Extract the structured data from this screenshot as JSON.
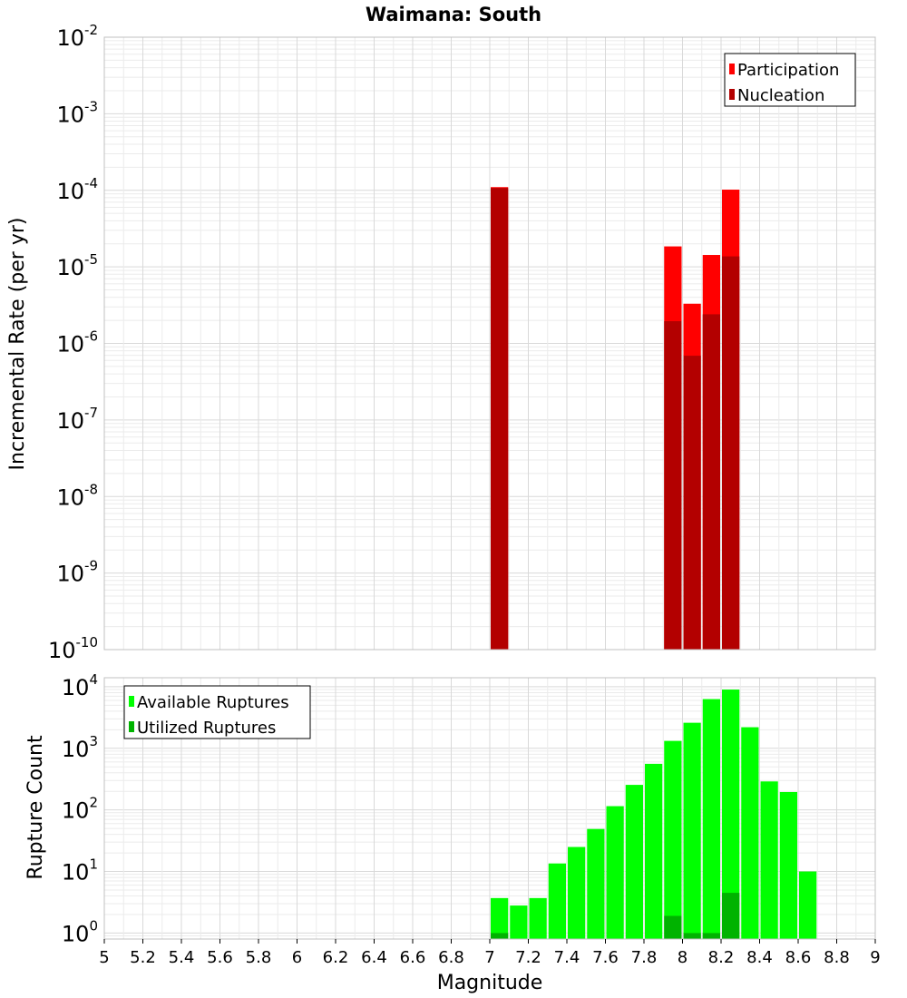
{
  "title": "Waimana: South",
  "colors": {
    "participation": "#ff0000",
    "nucleation": "#b30000",
    "available": "#00ff00",
    "utilized": "#00b300",
    "grid_minor": "#ebebeb",
    "grid_major": "#d9d9d9",
    "frame": "#c0c0c0"
  },
  "chart_data": [
    {
      "type": "bar",
      "title": "Waimana: South",
      "xlabel": "Magnitude",
      "ylabel": "Incremental Rate (per yr)",
      "yscale": "log",
      "xlim": [
        5,
        9
      ],
      "ylim": [
        1e-10,
        0.01
      ],
      "ytick_exponents": [
        "-10",
        "-9",
        "-8",
        "-7",
        "-6",
        "-5",
        "-4",
        "-3",
        "-2"
      ],
      "ytick_base": "10",
      "legend_position": "top-right",
      "grid": true,
      "bin_width": 0.1,
      "series": [
        {
          "name": "Participation",
          "color": "#ff0000",
          "points": [
            {
              "x": 7.05,
              "y": 0.00011
            },
            {
              "x": 7.95,
              "y": 1.85e-05
            },
            {
              "x": 8.05,
              "y": 3.3e-06
            },
            {
              "x": 8.15,
              "y": 1.43e-05
            },
            {
              "x": 8.25,
              "y": 0.000102
            }
          ]
        },
        {
          "name": "Nucleation",
          "color": "#b30000",
          "points": [
            {
              "x": 7.05,
              "y": 0.000107
            },
            {
              "x": 7.95,
              "y": 1.95e-06
            },
            {
              "x": 8.05,
              "y": 6.9e-07
            },
            {
              "x": 8.15,
              "y": 2.4e-06
            },
            {
              "x": 8.25,
              "y": 1.37e-05
            }
          ]
        }
      ]
    },
    {
      "type": "bar",
      "xlabel": "Magnitude",
      "ylabel": "Rupture Count",
      "yscale": "log",
      "xlim": [
        5,
        9
      ],
      "ylim": [
        0.8,
        14000
      ],
      "ytick_exponents": [
        "0",
        "1",
        "2",
        "3",
        "4"
      ],
      "ytick_base": "10",
      "xticks": [
        "5",
        "5.2",
        "5.4",
        "5.6",
        "5.8",
        "6",
        "6.2",
        "6.4",
        "6.6",
        "6.8",
        "7",
        "7.2",
        "7.4",
        "7.6",
        "7.8",
        "8",
        "8.2",
        "8.4",
        "8.6",
        "8.8",
        "9"
      ],
      "legend_position": "top-left",
      "grid": true,
      "bin_width": 0.1,
      "series": [
        {
          "name": "Available Ruptures",
          "color": "#00ff00",
          "points": [
            {
              "x": 7.05,
              "y": 3.7
            },
            {
              "x": 7.15,
              "y": 2.8
            },
            {
              "x": 7.25,
              "y": 3.7
            },
            {
              "x": 7.35,
              "y": 13.5
            },
            {
              "x": 7.45,
              "y": 25
            },
            {
              "x": 7.55,
              "y": 49
            },
            {
              "x": 7.65,
              "y": 115
            },
            {
              "x": 7.75,
              "y": 255
            },
            {
              "x": 7.85,
              "y": 560
            },
            {
              "x": 7.95,
              "y": 1320
            },
            {
              "x": 8.05,
              "y": 2600
            },
            {
              "x": 8.15,
              "y": 6300
            },
            {
              "x": 8.25,
              "y": 9000
            },
            {
              "x": 8.35,
              "y": 2200
            },
            {
              "x": 8.45,
              "y": 290
            },
            {
              "x": 8.55,
              "y": 195
            },
            {
              "x": 8.65,
              "y": 10
            }
          ]
        },
        {
          "name": "Utilized Ruptures",
          "color": "#00b300",
          "points": [
            {
              "x": 7.05,
              "y": 1
            },
            {
              "x": 7.95,
              "y": 1.9
            },
            {
              "x": 8.05,
              "y": 1
            },
            {
              "x": 8.15,
              "y": 1
            },
            {
              "x": 8.25,
              "y": 4.5
            }
          ]
        }
      ]
    }
  ]
}
